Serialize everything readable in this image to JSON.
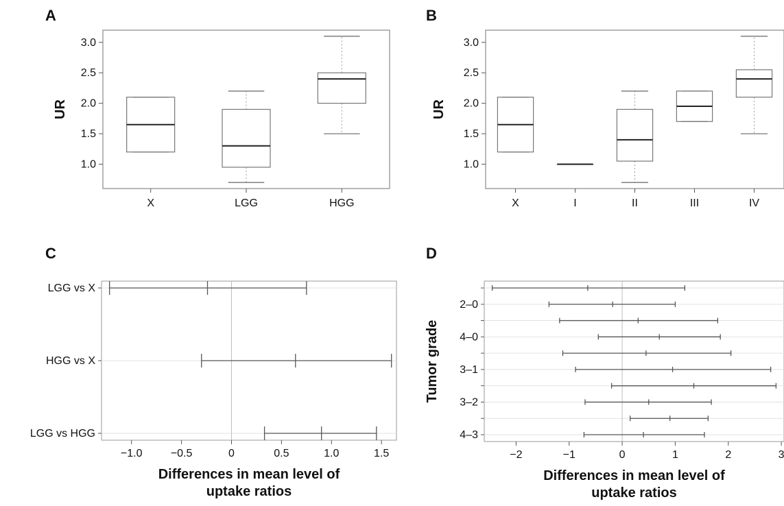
{
  "chart_data": [
    {
      "panel": "A",
      "type": "box",
      "ylabel": "UR",
      "xlabel": "",
      "ylim": [
        0.6,
        3.2
      ],
      "yticks": [
        "1.0",
        "1.5",
        "2.0",
        "2.5",
        "3.0"
      ],
      "categories": [
        "X",
        "LGG",
        "HGG"
      ],
      "boxes": [
        {
          "label": "X",
          "min": 1.2,
          "q1": 1.2,
          "median": 1.65,
          "q3": 2.1,
          "max": 2.1
        },
        {
          "label": "LGG",
          "min": 0.7,
          "q1": 0.95,
          "median": 1.3,
          "q3": 1.9,
          "max": 2.2
        },
        {
          "label": "HGG",
          "min": 1.5,
          "q1": 2.0,
          "median": 2.4,
          "q3": 2.5,
          "max": 3.1
        }
      ]
    },
    {
      "panel": "B",
      "type": "box",
      "ylabel": "UR",
      "xlabel": "",
      "ylim": [
        0.6,
        3.2
      ],
      "yticks": [
        "1.0",
        "1.5",
        "2.0",
        "2.5",
        "3.0"
      ],
      "categories": [
        "X",
        "I",
        "II",
        "III",
        "IV"
      ],
      "boxes": [
        {
          "label": "X",
          "min": 1.2,
          "q1": 1.2,
          "median": 1.65,
          "q3": 2.1,
          "max": 2.1
        },
        {
          "label": "I",
          "min": 1.0,
          "q1": 1.0,
          "median": 1.0,
          "q3": 1.0,
          "max": 1.0
        },
        {
          "label": "II",
          "min": 0.7,
          "q1": 1.05,
          "median": 1.4,
          "q3": 1.9,
          "max": 2.2
        },
        {
          "label": "III",
          "min": 1.7,
          "q1": 1.7,
          "median": 1.95,
          "q3": 2.2,
          "max": 2.2
        },
        {
          "label": "IV",
          "min": 1.5,
          "q1": 2.1,
          "median": 2.4,
          "q3": 2.55,
          "max": 3.1
        }
      ]
    },
    {
      "panel": "C",
      "type": "interval",
      "xlabel": "Differences in mean level of uptake ratios",
      "ylabel": "",
      "xlim": [
        -1.3,
        1.65
      ],
      "xticks": [
        "−1.0",
        "−0.5",
        "0",
        "0.5",
        "1.0",
        "1.5"
      ],
      "rows": [
        {
          "label": "LGG vs X",
          "lwr": -1.22,
          "diff": -0.24,
          "upr": 0.75
        },
        {
          "label": "HGG vs X",
          "lwr": -0.3,
          "diff": 0.64,
          "upr": 1.6
        },
        {
          "label": "LGG vs HGG",
          "lwr": 0.33,
          "diff": 0.9,
          "upr": 1.45
        }
      ]
    },
    {
      "panel": "D",
      "type": "interval",
      "xlabel": "Differences in mean level of uptake ratios",
      "ylabel": "Tumor grade",
      "xlim": [
        -2.6,
        3.05
      ],
      "xticks": [
        "−2",
        "−1",
        "0",
        "1",
        "2",
        "3"
      ],
      "ytick_labels": [
        "2–0",
        "4–0",
        "3–1",
        "3–2",
        "4–3"
      ],
      "rows": [
        {
          "lwr": -2.45,
          "diff": -0.65,
          "upr": 1.18
        },
        {
          "lwr": -1.38,
          "diff": -0.18,
          "upr": 1.0
        },
        {
          "lwr": -1.18,
          "diff": 0.3,
          "upr": 1.8
        },
        {
          "lwr": -0.45,
          "diff": 0.7,
          "upr": 1.85
        },
        {
          "lwr": -1.12,
          "diff": 0.45,
          "upr": 2.05
        },
        {
          "lwr": -0.88,
          "diff": 0.95,
          "upr": 2.8
        },
        {
          "lwr": -0.2,
          "diff": 1.35,
          "upr": 2.9
        },
        {
          "lwr": -0.7,
          "diff": 0.5,
          "upr": 1.68
        },
        {
          "lwr": 0.15,
          "diff": 0.9,
          "upr": 1.62
        },
        {
          "lwr": -0.72,
          "diff": 0.4,
          "upr": 1.55
        }
      ]
    }
  ]
}
